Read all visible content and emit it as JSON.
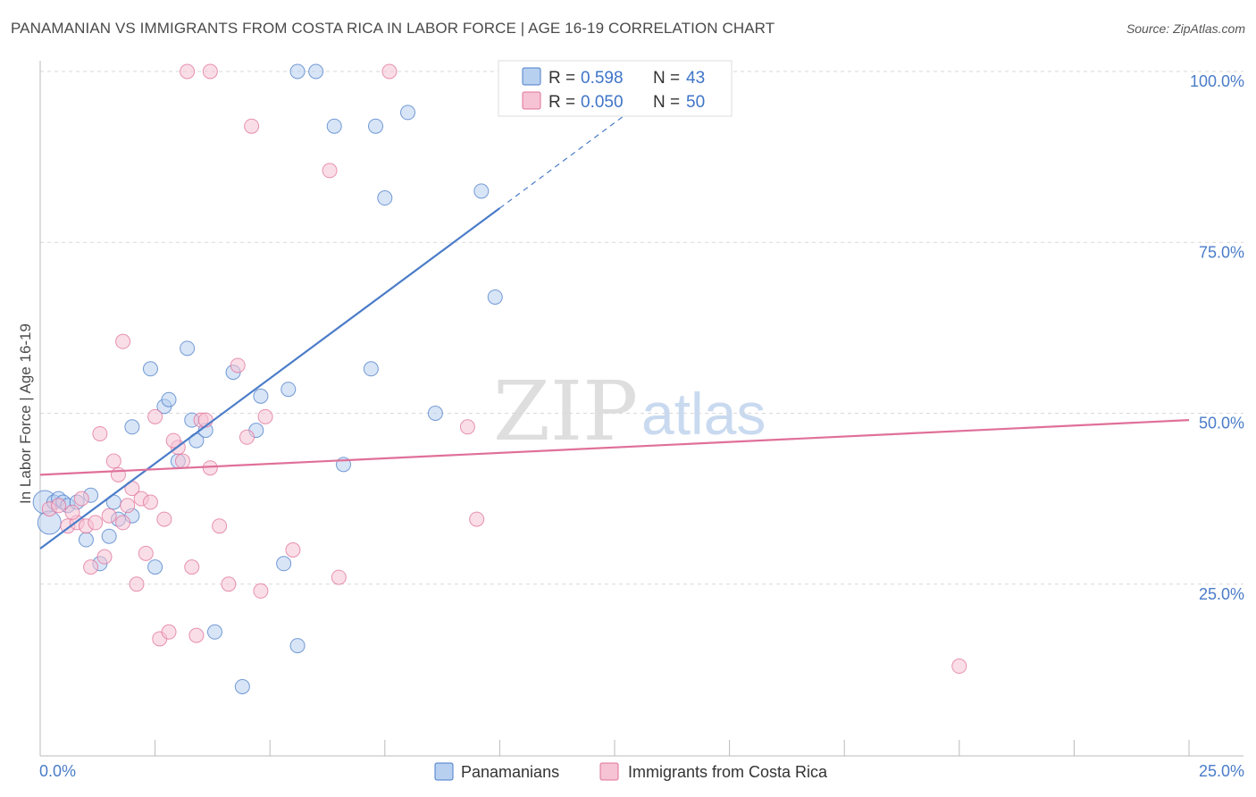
{
  "header": {
    "title": "PANAMANIAN VS IMMIGRANTS FROM COSTA RICA IN LABOR FORCE | AGE 16-19 CORRELATION CHART",
    "source": "Source: ZipAtlas.com"
  },
  "watermark": {
    "zip": "ZIP",
    "atlas": "atlas"
  },
  "colors": {
    "blue": "#4a7cc8",
    "blue_fill": "#b8d0f0",
    "pink": "#e07099",
    "pink_fill": "#f6c3d4"
  },
  "chart_data": {
    "type": "scatter",
    "title": "PANAMANIAN VS IMMIGRANTS FROM COSTA RICA IN LABOR FORCE | AGE 16-19 CORRELATION CHART",
    "xlabel": "",
    "ylabel": "In Labor Force | Age 16-19",
    "xlim": [
      0,
      25
    ],
    "ylim": [
      0,
      103
    ],
    "x_tick_labels": [
      "0.0%",
      "25.0%"
    ],
    "y_ticks": [
      25,
      50,
      75,
      100
    ],
    "y_tick_labels": [
      "25.0%",
      "50.0%",
      "75.0%",
      "100.0%"
    ],
    "legend": {
      "entries": [
        {
          "r_label": "R =",
          "r_value": "0.598",
          "n_label": "N =",
          "n_value": "43"
        },
        {
          "r_label": "R =",
          "r_value": "0.050",
          "n_label": "N =",
          "n_value": "50"
        }
      ]
    },
    "bottom_legend": [
      "Panamanians",
      "Immigrants from Costa Rica"
    ],
    "series": [
      {
        "name": "Panamanians",
        "color": "#4a7cc8",
        "trend": {
          "x0": 0,
          "y0": 30.2,
          "x1": 10,
          "y1": 80.0,
          "dash_x1": 13,
          "dash_y1": 95.0
        },
        "points": [
          [
            0.1,
            37
          ],
          [
            0.2,
            34
          ],
          [
            0.3,
            37
          ],
          [
            0.4,
            37.5
          ],
          [
            0.5,
            37
          ],
          [
            0.6,
            36.5
          ],
          [
            0.8,
            37
          ],
          [
            1.0,
            31.5
          ],
          [
            1.1,
            38
          ],
          [
            1.3,
            28
          ],
          [
            1.5,
            32
          ],
          [
            1.6,
            37
          ],
          [
            1.7,
            34.5
          ],
          [
            2.0,
            35
          ],
          [
            2.0,
            48
          ],
          [
            2.4,
            56.5
          ],
          [
            2.5,
            27.5
          ],
          [
            2.7,
            51
          ],
          [
            2.8,
            52
          ],
          [
            3.0,
            43
          ],
          [
            3.2,
            59.5
          ],
          [
            3.3,
            49
          ],
          [
            3.4,
            46
          ],
          [
            3.6,
            47.5
          ],
          [
            3.8,
            18
          ],
          [
            4.2,
            56
          ],
          [
            4.4,
            10
          ],
          [
            4.7,
            47.5
          ],
          [
            4.8,
            52.5
          ],
          [
            5.3,
            28
          ],
          [
            5.4,
            53.5
          ],
          [
            5.6,
            16
          ],
          [
            5.6,
            100
          ],
          [
            6.0,
            100
          ],
          [
            6.4,
            92
          ],
          [
            6.6,
            42.5
          ],
          [
            7.2,
            56.5
          ],
          [
            7.3,
            92
          ],
          [
            7.5,
            81.5
          ],
          [
            8.0,
            94
          ],
          [
            8.6,
            50
          ],
          [
            9.6,
            82.5
          ],
          [
            9.9,
            67
          ]
        ]
      },
      {
        "name": "Immigrants from Costa Rica",
        "color": "#e07099",
        "trend": {
          "x0": 0,
          "y0": 41,
          "x1": 25,
          "y1": 49
        },
        "points": [
          [
            0.2,
            36
          ],
          [
            0.4,
            36.5
          ],
          [
            0.6,
            33.5
          ],
          [
            0.8,
            34
          ],
          [
            0.9,
            37.5
          ],
          [
            1.0,
            33.5
          ],
          [
            1.1,
            27.5
          ],
          [
            1.2,
            34
          ],
          [
            1.3,
            47
          ],
          [
            1.4,
            29
          ],
          [
            1.6,
            43
          ],
          [
            1.7,
            41
          ],
          [
            1.8,
            60.5
          ],
          [
            1.8,
            34
          ],
          [
            1.9,
            36.5
          ],
          [
            2.0,
            39
          ],
          [
            2.1,
            25
          ],
          [
            2.2,
            37.5
          ],
          [
            2.3,
            29.5
          ],
          [
            2.4,
            37
          ],
          [
            2.5,
            49.5
          ],
          [
            2.6,
            17
          ],
          [
            2.7,
            34.5
          ],
          [
            2.8,
            18
          ],
          [
            3.0,
            45
          ],
          [
            3.1,
            43
          ],
          [
            3.2,
            100
          ],
          [
            3.3,
            27.5
          ],
          [
            3.4,
            17.5
          ],
          [
            3.5,
            49
          ],
          [
            3.6,
            49
          ],
          [
            3.7,
            42
          ],
          [
            4.1,
            25
          ],
          [
            4.3,
            57
          ],
          [
            4.5,
            46.5
          ],
          [
            4.6,
            92
          ],
          [
            4.8,
            24
          ],
          [
            4.9,
            49.5
          ],
          [
            5.5,
            30
          ],
          [
            6.3,
            85.5
          ],
          [
            6.5,
            26
          ],
          [
            7.6,
            100
          ],
          [
            9.3,
            48
          ],
          [
            9.5,
            34.5
          ],
          [
            20.0,
            13
          ],
          [
            3.7,
            100
          ],
          [
            3.9,
            33.5
          ],
          [
            1.5,
            35
          ],
          [
            0.7,
            35.5
          ],
          [
            2.9,
            46
          ]
        ]
      }
    ]
  }
}
